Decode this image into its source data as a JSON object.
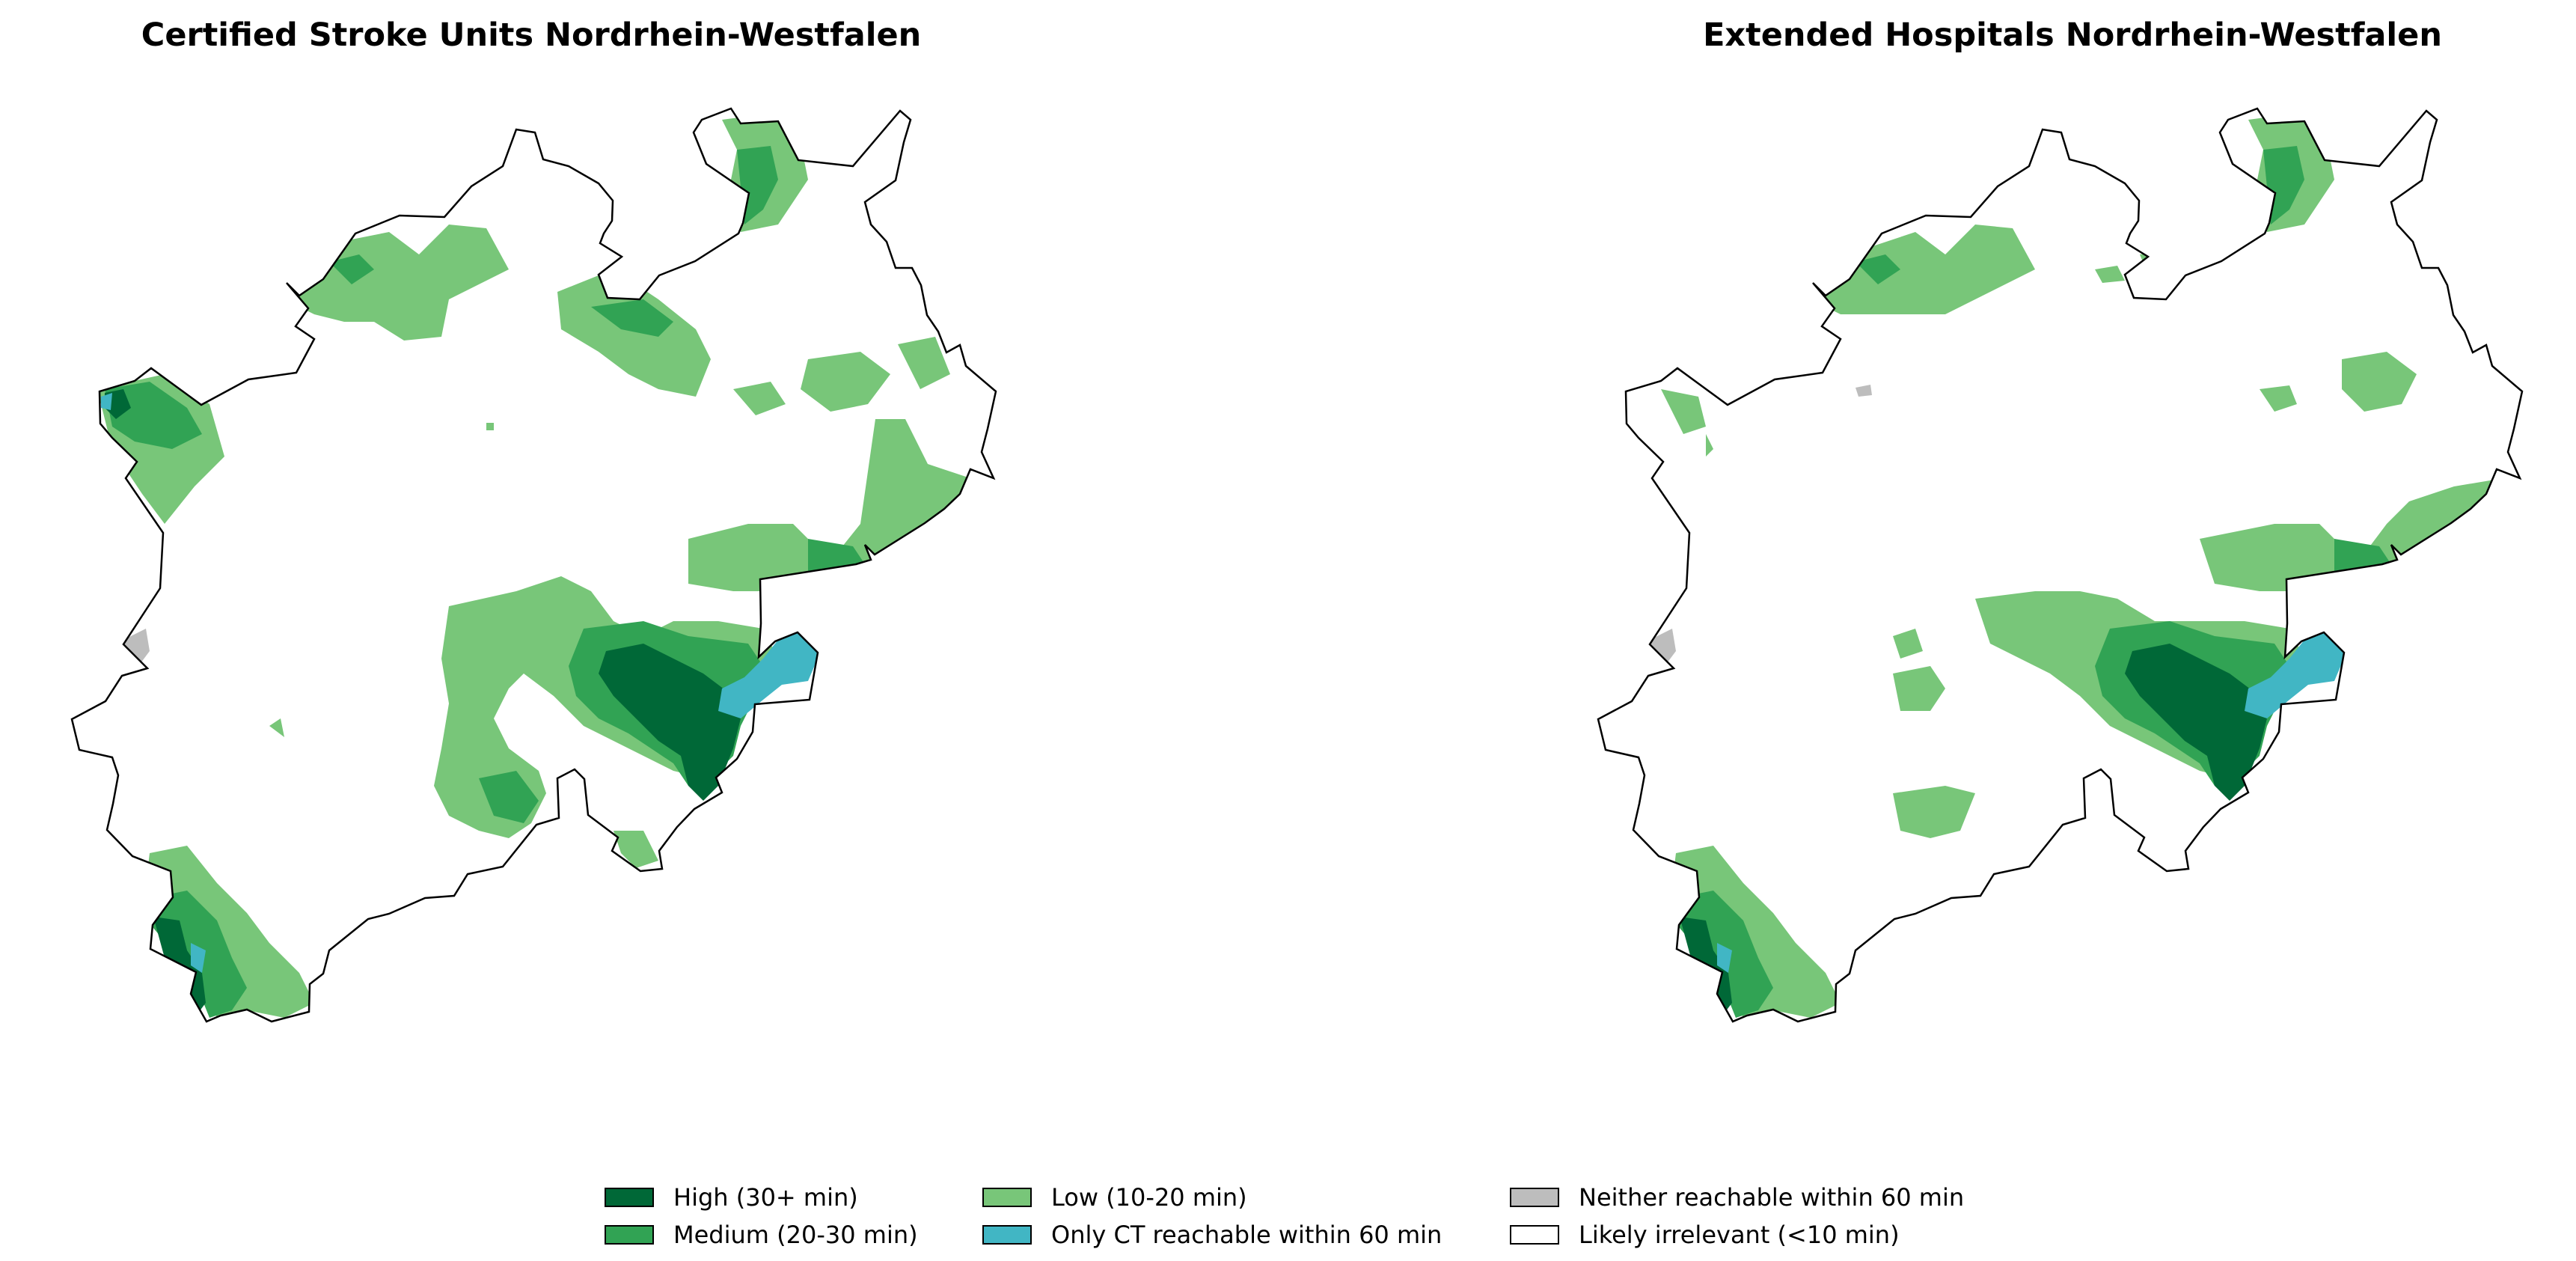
{
  "maps": [
    {
      "id": "left",
      "title": "Certified Stroke Units Nordrhein-Westfalen"
    },
    {
      "id": "right",
      "title": "Extended Hospitals Nordrhein-Westfalen"
    }
  ],
  "legend": {
    "items": [
      {
        "key": "high",
        "label": "High (30+ min)",
        "color": "#006837"
      },
      {
        "key": "medium",
        "label": "Medium (20-30 min)",
        "color": "#31a354"
      },
      {
        "key": "low",
        "label": "Low (10-20 min)",
        "color": "#78c679"
      },
      {
        "key": "ct_only",
        "label": "Only CT reachable within 60 min",
        "color": "#41b6c4"
      },
      {
        "key": "neither",
        "label": "Neither reachable within 60 min",
        "color": "#bdbdbd"
      },
      {
        "key": "irrelevant",
        "label": "Likely irrelevant (<10 min)",
        "color": "#ffffff"
      }
    ],
    "column_order": [
      "high",
      "medium",
      "low",
      "ct_only",
      "neither",
      "irrelevant"
    ]
  },
  "outline_color": "#000000"
}
